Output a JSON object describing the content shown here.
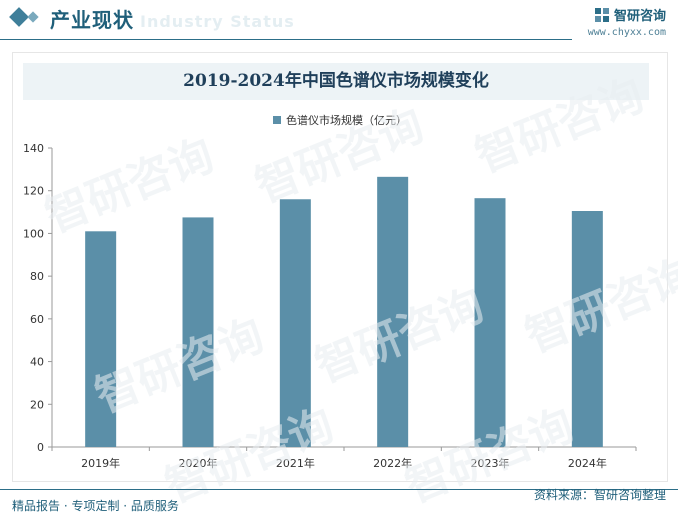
{
  "header": {
    "section_title": "产业现状",
    "ghost_text": "Industry Status",
    "brand_name": "智研咨询",
    "brand_url": "www.chyxx.com"
  },
  "watermark_text": "智研咨询",
  "chart_data": {
    "type": "bar",
    "title": "2019-2024年中国色谱仪市场规模变化",
    "categories": [
      "2019年",
      "2020年",
      "2021年",
      "2022年",
      "2023年",
      "2024年"
    ],
    "series": [
      {
        "name": "色谱仪市场规模（亿元）",
        "values": [
          101,
          107.5,
          116,
          126.5,
          116.5,
          110.5
        ]
      }
    ],
    "yticks": [
      0,
      20,
      40,
      60,
      80,
      100,
      120,
      140
    ],
    "ylim": [
      0,
      140
    ],
    "xlabel": "",
    "ylabel": "",
    "grid": false,
    "legend": "top",
    "bar_color": "#5b8fa8",
    "axis_color": "#9a9a9a"
  },
  "footer": {
    "left": "精品报告 · 专项定制 · 品质服务",
    "right": "资料来源：智研咨询整理"
  }
}
